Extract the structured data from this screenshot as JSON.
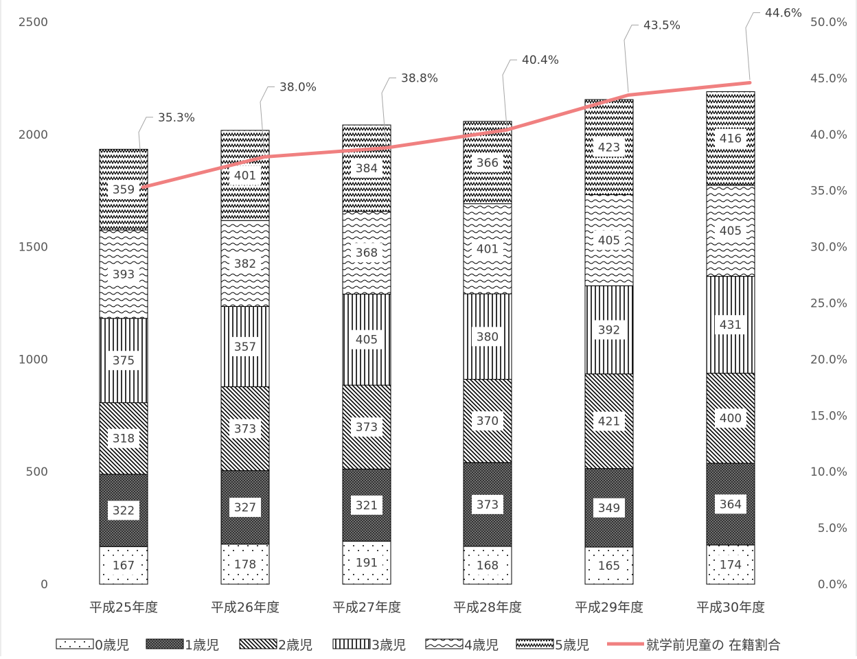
{
  "chart_data": {
    "type": "bar",
    "stacked": true,
    "categories": [
      "平成25年度",
      "平成26年度",
      "平成27年度",
      "平成28年度",
      "平成29年度",
      "平成30年度"
    ],
    "series": [
      {
        "name": "0歳児",
        "pattern": "dots",
        "values": [
          167,
          178,
          191,
          168,
          165,
          174
        ]
      },
      {
        "name": "1歳児",
        "pattern": "dense-crosshatch",
        "values": [
          322,
          327,
          321,
          373,
          349,
          364
        ]
      },
      {
        "name": "2歳児",
        "pattern": "diagonal",
        "values": [
          318,
          373,
          373,
          370,
          421,
          400
        ]
      },
      {
        "name": "3歳児",
        "pattern": "vertical",
        "values": [
          375,
          357,
          405,
          380,
          392,
          431
        ]
      },
      {
        "name": "4歳児",
        "pattern": "waves",
        "values": [
          393,
          382,
          368,
          401,
          405,
          405
        ]
      },
      {
        "name": "5歳児",
        "pattern": "zigzag",
        "values": [
          359,
          401,
          384,
          366,
          423,
          416
        ]
      }
    ],
    "line_series": {
      "name": "就学前児童の 在籍割合",
      "axis": "right",
      "color": "#F08080",
      "values": [
        35.3,
        38.0,
        38.8,
        40.4,
        43.5,
        44.6
      ],
      "labels": [
        "35.3%",
        "38.0%",
        "38.8%",
        "40.4%",
        "43.5%",
        "44.6%"
      ]
    },
    "y_left": {
      "min": 0,
      "max": 2500,
      "ticks": [
        "0",
        "500",
        "1000",
        "1500",
        "2000",
        "2500"
      ]
    },
    "y_right": {
      "min": 0,
      "max": 50,
      "ticks": [
        "0.0%",
        "5.0%",
        "10.0%",
        "15.0%",
        "20.0%",
        "25.0%",
        "30.0%",
        "35.0%",
        "40.0%",
        "45.0%",
        "50.0%"
      ]
    },
    "grid": false,
    "legend": "bottom"
  }
}
